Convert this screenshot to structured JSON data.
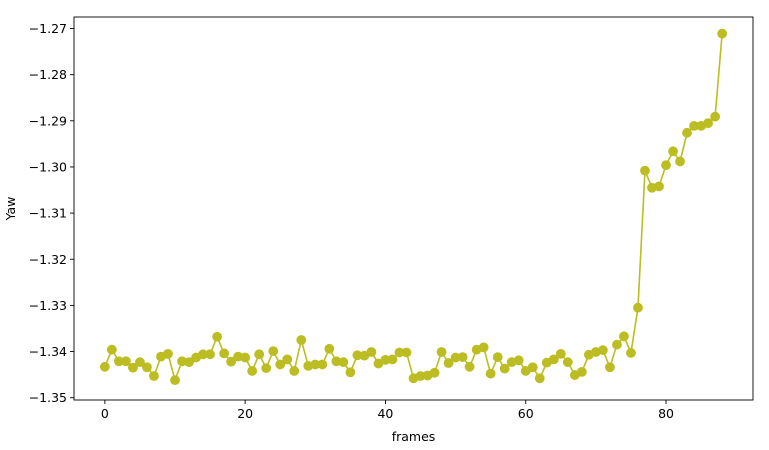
{
  "chart_data": {
    "type": "line",
    "xlabel": "frames",
    "ylabel": "Yaw",
    "xlim": [
      -4.4,
      92.4
    ],
    "ylim": [
      -1.3505,
      -1.2675
    ],
    "xticks": [
      0,
      20,
      40,
      60,
      80
    ],
    "yticks": [
      -1.35,
      -1.34,
      -1.33,
      -1.32,
      -1.31,
      -1.3,
      -1.29,
      -1.28,
      -1.27
    ],
    "ytick_labels": [
      "−1.35",
      "−1.34",
      "−1.33",
      "−1.32",
      "−1.31",
      "−1.30",
      "−1.29",
      "−1.28",
      "−1.27"
    ],
    "xtick_labels": [
      "0",
      "20",
      "40",
      "60",
      "80"
    ],
    "grid": false,
    "series": [
      {
        "color": "#bcbd22",
        "marker": "circle",
        "x": [
          0,
          1,
          2,
          3,
          4,
          5,
          6,
          7,
          8,
          9,
          10,
          11,
          12,
          13,
          14,
          15,
          16,
          17,
          18,
          19,
          20,
          21,
          22,
          23,
          24,
          25,
          26,
          27,
          28,
          29,
          30,
          31,
          32,
          33,
          34,
          35,
          36,
          37,
          38,
          39,
          40,
          41,
          42,
          43,
          44,
          45,
          46,
          47,
          48,
          49,
          50,
          51,
          52,
          53,
          54,
          55,
          56,
          57,
          58,
          59,
          60,
          61,
          62,
          63,
          64,
          65,
          66,
          67,
          68,
          69,
          70,
          71,
          72,
          73,
          74,
          75,
          76,
          77,
          78,
          79,
          80,
          81,
          82,
          83,
          84,
          85,
          86,
          87,
          88
        ],
        "y": [
          -1.3433,
          -1.3396,
          -1.3421,
          -1.3421,
          -1.3435,
          -1.3423,
          -1.3434,
          -1.3453,
          -1.3411,
          -1.3405,
          -1.3462,
          -1.3421,
          -1.3423,
          -1.3413,
          -1.3406,
          -1.3406,
          -1.3368,
          -1.3404,
          -1.3422,
          -1.3411,
          -1.3413,
          -1.3442,
          -1.3406,
          -1.3436,
          -1.3399,
          -1.3428,
          -1.3417,
          -1.3442,
          -1.3375,
          -1.3431,
          -1.3428,
          -1.3428,
          -1.3394,
          -1.3421,
          -1.3423,
          -1.3445,
          -1.3408,
          -1.3409,
          -1.3401,
          -1.3426,
          -1.3418,
          -1.3417,
          -1.3402,
          -1.3402,
          -1.3458,
          -1.3453,
          -1.3452,
          -1.3446,
          -1.3401,
          -1.3425,
          -1.3413,
          -1.3412,
          -1.3433,
          -1.3396,
          -1.3391,
          -1.3448,
          -1.3412,
          -1.3437,
          -1.3423,
          -1.3419,
          -1.3442,
          -1.3434,
          -1.3458,
          -1.3424,
          -1.3417,
          -1.3405,
          -1.3423,
          -1.3451,
          -1.3444,
          -1.3407,
          -1.3401,
          -1.3397,
          -1.3434,
          -1.3385,
          -1.3367,
          -1.3403,
          -1.3305,
          -1.3008,
          -1.3045,
          -1.3042,
          -1.2996,
          -1.2966,
          -1.2988,
          -1.2926,
          -1.2911,
          -1.2911,
          -1.2905,
          -1.2891,
          -1.2711
        ]
      }
    ]
  }
}
